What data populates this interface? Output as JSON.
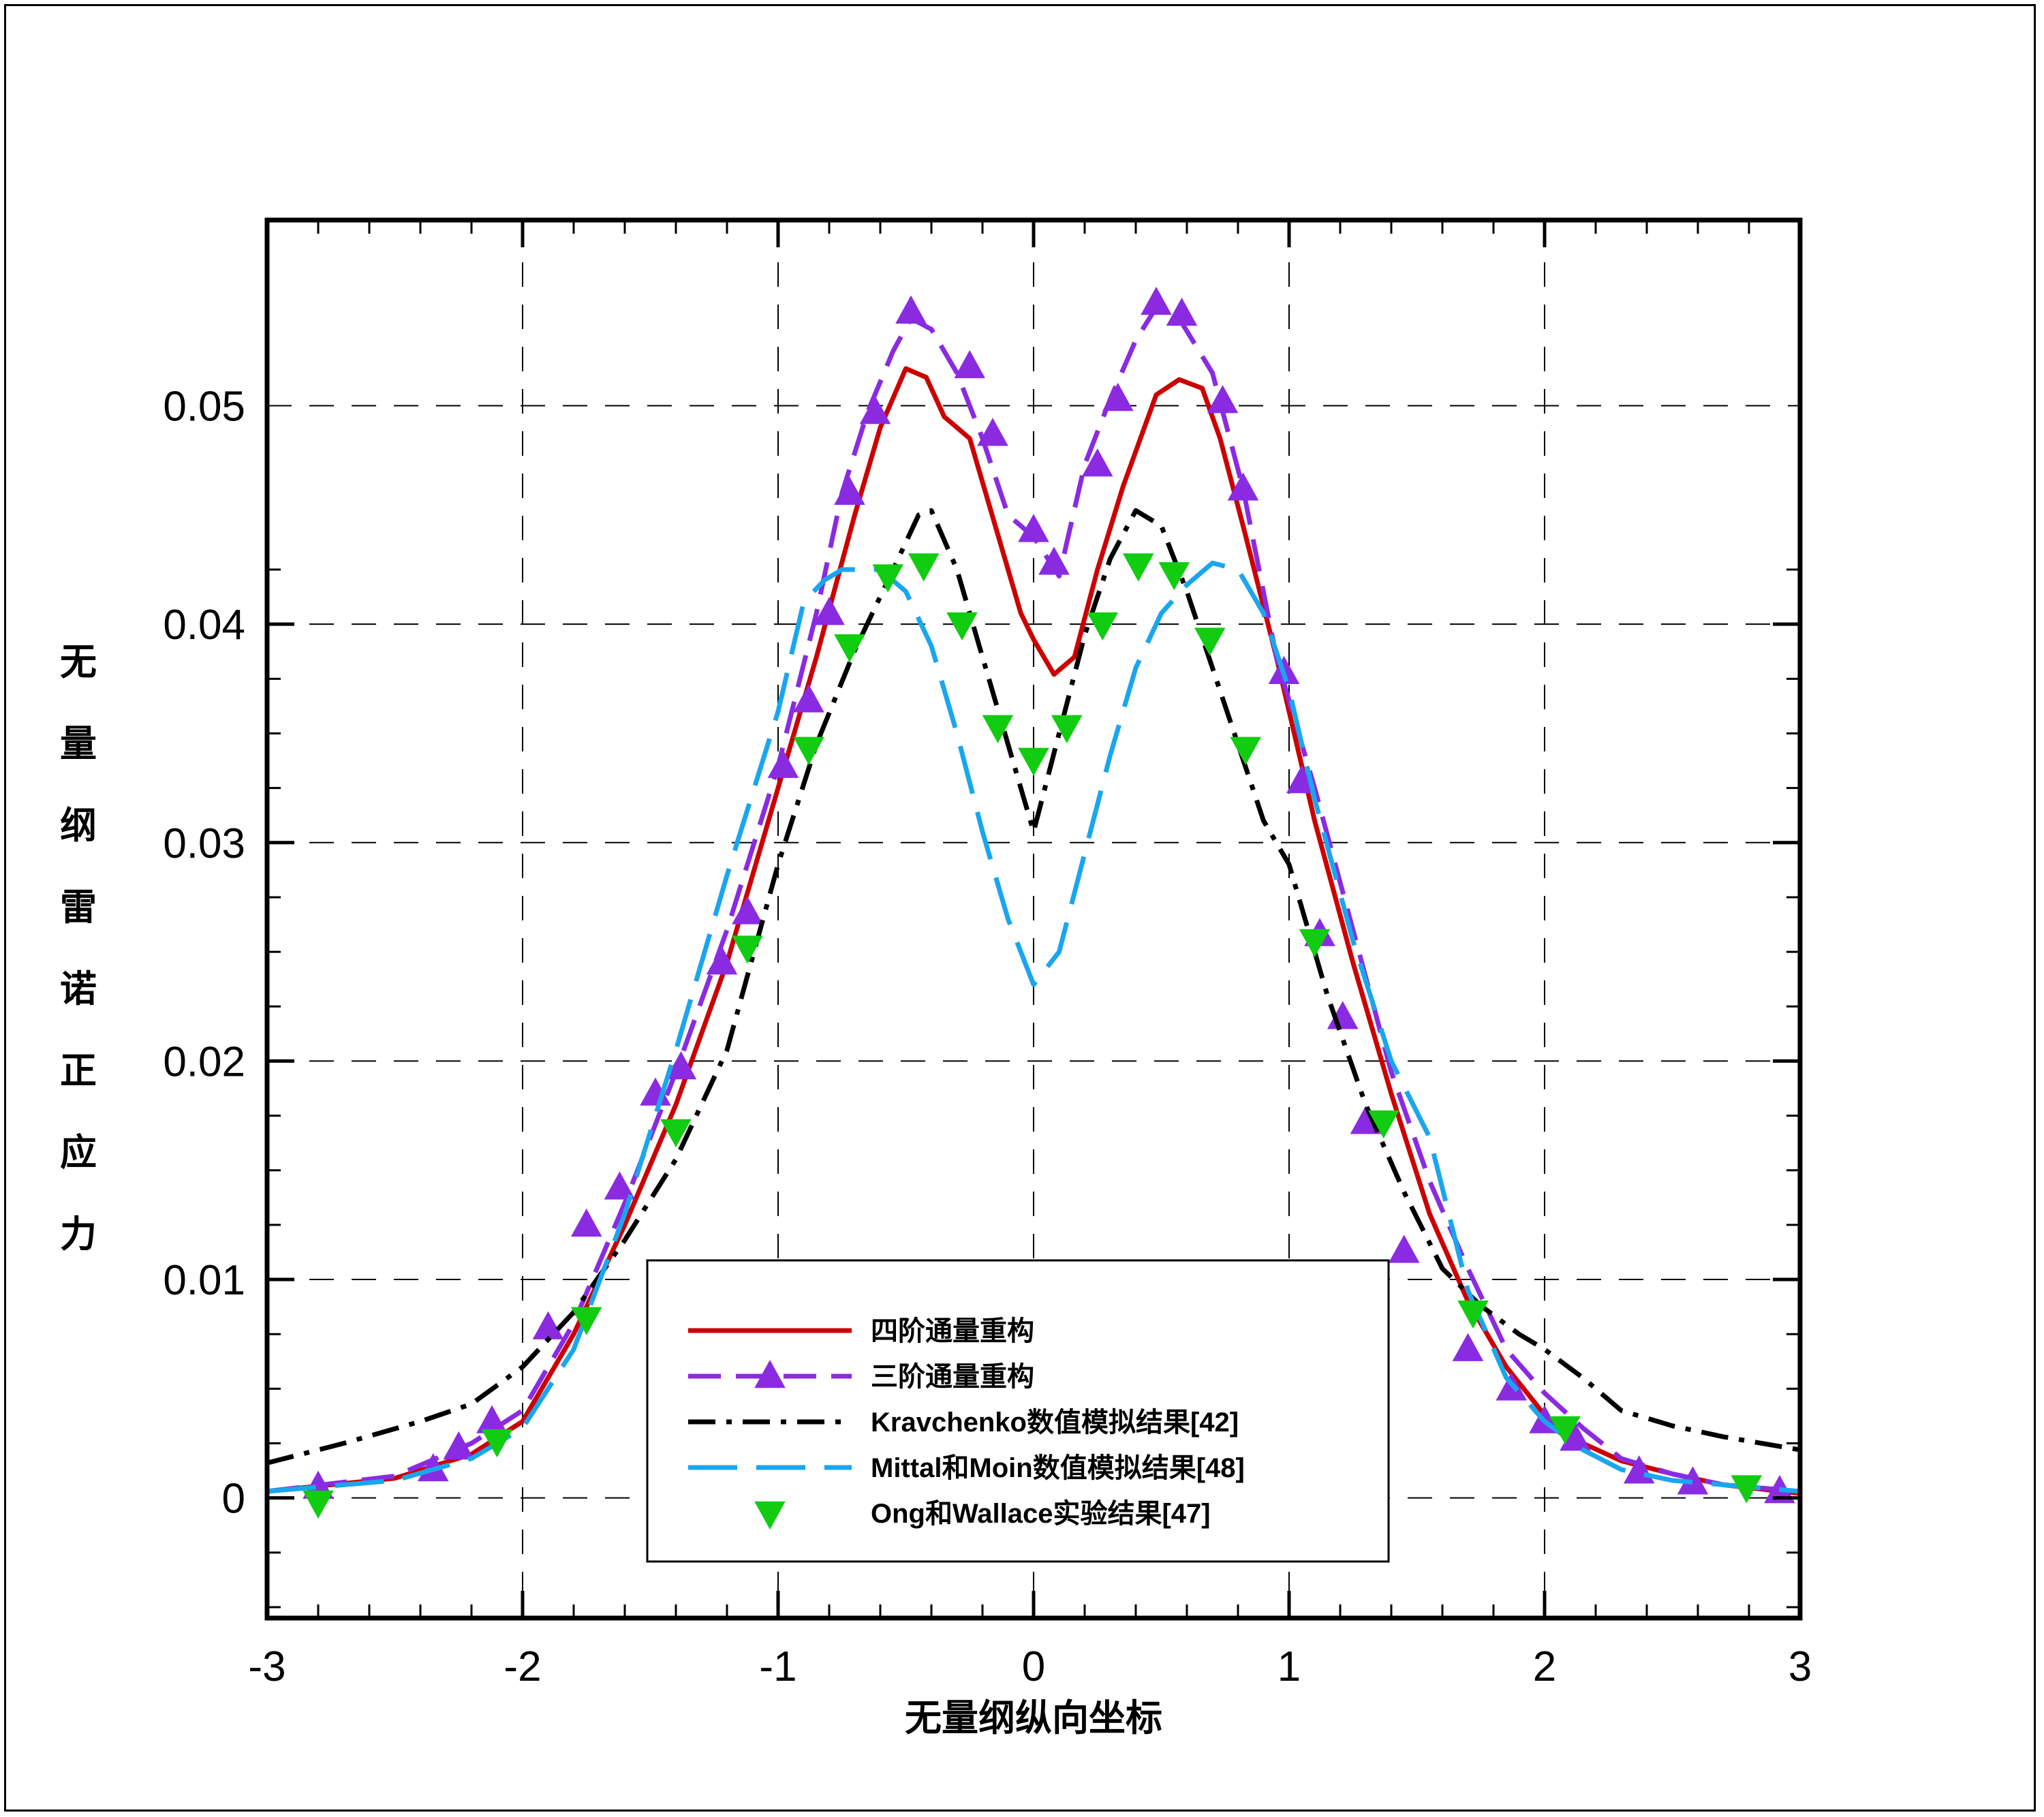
{
  "chart_data": {
    "type": "line",
    "xlabel": "无量纲纵向坐标",
    "ylabel": "无量纲雷诺正应力",
    "xlim": [
      -3,
      3
    ],
    "ylim": [
      -0.0055,
      0.0585
    ],
    "x_ticks": [
      -3,
      -2,
      -1,
      0,
      1,
      2,
      3
    ],
    "x_tick_labels": [
      "-3",
      "-2",
      "-1",
      "0",
      "1",
      "2",
      "3"
    ],
    "y_ticks": [
      0,
      0.01,
      0.02,
      0.03,
      0.04,
      0.05
    ],
    "y_tick_labels": [
      "0",
      "0.01",
      "0.02",
      "0.03",
      "0.04",
      "0.05"
    ],
    "grid": true,
    "legend_position": "lower-center",
    "series": [
      {
        "name": "四阶通量重构",
        "style": "solid",
        "color": "#cc0000",
        "x": [
          -3.0,
          -2.5,
          -2.2,
          -2.0,
          -1.8,
          -1.6,
          -1.4,
          -1.2,
          -1.0,
          -0.85,
          -0.7,
          -0.6,
          -0.5,
          -0.42,
          -0.35,
          -0.25,
          -0.15,
          -0.05,
          0.0,
          0.08,
          0.16,
          0.25,
          0.35,
          0.48,
          0.57,
          0.66,
          0.73,
          0.82,
          0.95,
          1.1,
          1.25,
          1.4,
          1.55,
          1.7,
          1.85,
          2.0,
          2.15,
          2.3,
          2.5,
          2.7,
          3.0
        ],
        "y": [
          0.0003,
          0.0009,
          0.002,
          0.0035,
          0.0075,
          0.0125,
          0.018,
          0.0245,
          0.0325,
          0.0385,
          0.045,
          0.049,
          0.0517,
          0.0513,
          0.0495,
          0.0485,
          0.0445,
          0.0405,
          0.0393,
          0.0377,
          0.0385,
          0.0425,
          0.0463,
          0.0505,
          0.0512,
          0.0508,
          0.0485,
          0.0445,
          0.0385,
          0.031,
          0.0245,
          0.0185,
          0.013,
          0.009,
          0.006,
          0.0038,
          0.0025,
          0.0017,
          0.0011,
          0.0006,
          0.0002
        ]
      },
      {
        "name": "三阶通量重构",
        "style": "dashed",
        "color": "#8a2be2",
        "marker": "triangle-up",
        "x": [
          -3.0,
          -2.5,
          -2.2,
          -2.0,
          -1.8,
          -1.6,
          -1.4,
          -1.2,
          -1.0,
          -0.85,
          -0.75,
          -0.65,
          -0.55,
          -0.48,
          -0.4,
          -0.3,
          -0.2,
          -0.1,
          0.0,
          0.1,
          0.2,
          0.3,
          0.4,
          0.48,
          0.58,
          0.7,
          0.82,
          0.95,
          1.1,
          1.25,
          1.4,
          1.55,
          1.7,
          1.85,
          2.0,
          2.15,
          2.3,
          2.5,
          2.7,
          3.0
        ],
        "y": [
          0.0003,
          0.001,
          0.0025,
          0.004,
          0.008,
          0.0135,
          0.0195,
          0.026,
          0.0335,
          0.0405,
          0.046,
          0.0497,
          0.0525,
          0.054,
          0.0535,
          0.0515,
          0.0485,
          0.045,
          0.044,
          0.0422,
          0.0473,
          0.0503,
          0.053,
          0.0545,
          0.0538,
          0.0515,
          0.0462,
          0.0385,
          0.0325,
          0.026,
          0.0195,
          0.0145,
          0.0105,
          0.0068,
          0.0048,
          0.0032,
          0.0018,
          0.0011,
          0.0006,
          0.0003
        ]
      },
      {
        "name": "三阶通量重构 markers",
        "x": [
          -2.8,
          -2.35,
          -2.25,
          -2.12,
          -1.9,
          -1.75,
          -1.62,
          -1.48,
          -1.38,
          -1.22,
          -1.12,
          -0.98,
          -0.88,
          -0.8,
          -0.72,
          -0.62,
          -0.48,
          -0.25,
          -0.16,
          0.0,
          0.08,
          0.25,
          0.33,
          0.48,
          0.58,
          0.74,
          0.82,
          0.98,
          1.05,
          1.12,
          1.21,
          1.3,
          1.45,
          1.7,
          1.87,
          2.0,
          2.12,
          2.37,
          2.58,
          2.92
        ],
        "y": [
          0.0005,
          0.0013,
          0.0023,
          0.0035,
          0.0078,
          0.0125,
          0.0142,
          0.0185,
          0.0197,
          0.0245,
          0.0268,
          0.0335,
          0.0365,
          0.0405,
          0.046,
          0.0497,
          0.0543,
          0.0518,
          0.0487,
          0.0443,
          0.0428,
          0.0473,
          0.0503,
          0.0547,
          0.0542,
          0.0502,
          0.0462,
          0.0378,
          0.0328,
          0.0258,
          0.022,
          0.0172,
          0.0113,
          0.0068,
          0.005,
          0.0035,
          0.0027,
          0.0012,
          0.0007,
          0.0003
        ],
        "color": "#8a2be2",
        "marker": "triangle-up",
        "markers_only": true
      },
      {
        "name": "Kravchenko数值模拟结果[42]",
        "style": "dashdot",
        "color": "#000000",
        "x": [
          -3.0,
          -2.7,
          -2.4,
          -2.2,
          -2.0,
          -1.8,
          -1.6,
          -1.4,
          -1.2,
          -1.0,
          -0.85,
          -0.7,
          -0.55,
          -0.45,
          -0.4,
          -0.3,
          -0.2,
          -0.1,
          0.0,
          0.1,
          0.2,
          0.3,
          0.4,
          0.5,
          0.6,
          0.7,
          0.8,
          0.9,
          1.0,
          1.15,
          1.3,
          1.45,
          1.6,
          1.75,
          1.9,
          2.0,
          2.15,
          2.3,
          2.5,
          2.7,
          3.0
        ],
        "y": [
          0.0016,
          0.0025,
          0.0035,
          0.0043,
          0.006,
          0.0085,
          0.0118,
          0.0155,
          0.0205,
          0.029,
          0.0345,
          0.0388,
          0.0425,
          0.045,
          0.0452,
          0.0425,
          0.0385,
          0.0345,
          0.0305,
          0.035,
          0.0395,
          0.043,
          0.0452,
          0.0445,
          0.0415,
          0.038,
          0.0345,
          0.031,
          0.029,
          0.023,
          0.018,
          0.014,
          0.0105,
          0.0088,
          0.0075,
          0.0068,
          0.0055,
          0.004,
          0.0033,
          0.0028,
          0.0022
        ]
      },
      {
        "name": "Mittal和Moin数值模拟结果[48]",
        "style": "longdash",
        "color": "#1aa6ef",
        "x": [
          -3.0,
          -2.5,
          -2.2,
          -2.0,
          -1.8,
          -1.6,
          -1.4,
          -1.2,
          -1.0,
          -0.9,
          -0.82,
          -0.75,
          -0.6,
          -0.5,
          -0.4,
          -0.3,
          -0.2,
          -0.1,
          0.0,
          0.1,
          0.2,
          0.3,
          0.4,
          0.5,
          0.6,
          0.7,
          0.8,
          0.9,
          1.0,
          1.1,
          1.25,
          1.4,
          1.55,
          1.7,
          1.85,
          2.0,
          2.15,
          2.3,
          2.5,
          3.0
        ],
        "y": [
          0.0003,
          0.0008,
          0.0018,
          0.0032,
          0.0068,
          0.013,
          0.0205,
          0.0285,
          0.036,
          0.041,
          0.042,
          0.0425,
          0.0425,
          0.0415,
          0.039,
          0.035,
          0.0305,
          0.0265,
          0.0235,
          0.025,
          0.0295,
          0.034,
          0.038,
          0.0405,
          0.0418,
          0.0428,
          0.0425,
          0.0405,
          0.037,
          0.032,
          0.0255,
          0.02,
          0.0165,
          0.0095,
          0.0055,
          0.0035,
          0.0022,
          0.0013,
          0.0008,
          0.0003
        ]
      },
      {
        "name": "Ong和Wallace实验结果[47]",
        "color": "#11cc11",
        "marker": "triangle-down",
        "markers_only": true,
        "x": [
          -2.8,
          -2.1,
          -1.75,
          -1.4,
          -1.12,
          -0.88,
          -0.72,
          -0.57,
          -0.43,
          -0.28,
          -0.14,
          0.0,
          0.13,
          0.27,
          0.41,
          0.55,
          0.69,
          0.83,
          1.1,
          1.37,
          1.72,
          2.08,
          2.79
        ],
        "y": [
          -0.0002,
          0.0026,
          0.0082,
          0.0168,
          0.0252,
          0.0343,
          0.039,
          0.0422,
          0.0427,
          0.04,
          0.0353,
          0.0338,
          0.0353,
          0.04,
          0.0427,
          0.0423,
          0.0393,
          0.0343,
          0.0255,
          0.0172,
          0.0085,
          0.0032,
          0.0005
        ]
      }
    ],
    "legend": [
      {
        "label": "四阶通量重构",
        "color": "#cc0000",
        "style": "solid",
        "marker": ""
      },
      {
        "label": "三阶通量重构",
        "color": "#8a2be2",
        "style": "dashed",
        "marker": "triangle-up"
      },
      {
        "label": "Kravchenko数值模拟结果[42]",
        "color": "#000000",
        "style": "dashdot",
        "marker": ""
      },
      {
        "label": "Mittal和Moin数值模拟结果[48]",
        "color": "#1aa6ef",
        "style": "longdash",
        "marker": ""
      },
      {
        "label": "Ong和Wallace实验结果[47]",
        "color": "#11cc11",
        "style": "none",
        "marker": "triangle-down"
      }
    ]
  }
}
